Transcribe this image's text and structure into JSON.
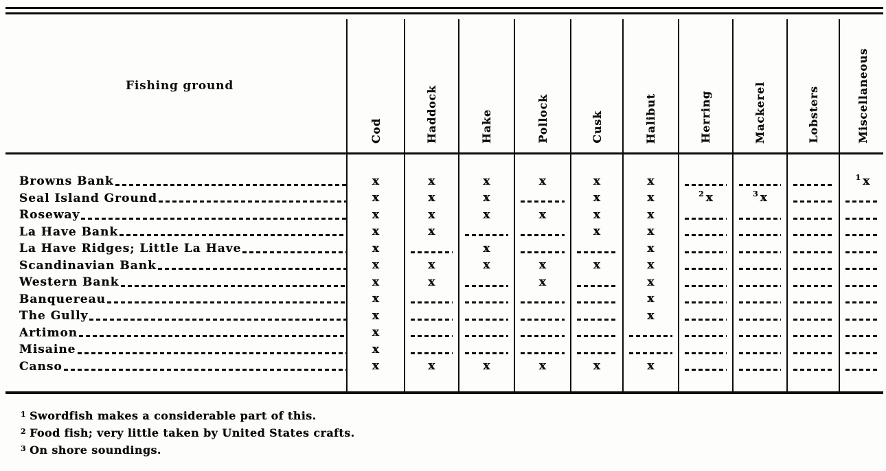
{
  "table": {
    "title": "Fishing ground",
    "columns": [
      "Cod",
      "Haddock",
      "Hake",
      "Pollock",
      "Cusk",
      "Halibut",
      "Herring",
      "Mackerel",
      "Lobsters",
      "Miscellaneous"
    ],
    "mark_glyph": "x",
    "rows": [
      {
        "label": "Browns Bank",
        "cells": [
          "x",
          "x",
          "x",
          "x",
          "x",
          "x",
          "-",
          "-",
          "-",
          "1x"
        ]
      },
      {
        "label": "Seal Island Ground",
        "cells": [
          "x",
          "x",
          "x",
          "-",
          "x",
          "x",
          "2x",
          "3x",
          "-",
          "-"
        ]
      },
      {
        "label": "Roseway",
        "cells": [
          "x",
          "x",
          "x",
          "x",
          "x",
          "x",
          "-",
          "-",
          "-",
          "-"
        ]
      },
      {
        "label": "La Have Bank",
        "cells": [
          "x",
          "x",
          "-",
          "-",
          "x",
          "x",
          "-",
          "-",
          "-",
          "-"
        ]
      },
      {
        "label": "La Have Ridges; Little La Have",
        "cells": [
          "x",
          "-",
          "x",
          "-",
          "-",
          "x",
          "-",
          "-",
          "-",
          "-"
        ]
      },
      {
        "label": "Scandinavian Bank",
        "cells": [
          "x",
          "x",
          "x",
          "x",
          "x",
          "x",
          "-",
          "-",
          "-",
          "-"
        ]
      },
      {
        "label": "Western Bank",
        "cells": [
          "x",
          "x",
          "-",
          "x",
          "-",
          "x",
          "-",
          "-",
          "-",
          "-"
        ]
      },
      {
        "label": "Banquereau",
        "cells": [
          "x",
          "-",
          "-",
          "-",
          "-",
          "x",
          "-",
          "-",
          "-",
          "-"
        ]
      },
      {
        "label": "The Gully",
        "cells": [
          "x",
          "-",
          "-",
          "-",
          "-",
          "x",
          "-",
          "-",
          "-",
          "-"
        ]
      },
      {
        "label": "Artimon",
        "cells": [
          "x",
          "-",
          "-",
          "-",
          "-",
          "-",
          "-",
          "-",
          "-",
          "-"
        ]
      },
      {
        "label": "Misaine",
        "cells": [
          "x",
          "-",
          "-",
          "-",
          "-",
          "-",
          "-",
          "-",
          "-",
          "-"
        ]
      },
      {
        "label": "Canso",
        "cells": [
          "x",
          "x",
          "x",
          "x",
          "x",
          "x",
          "-",
          "-",
          "-",
          "-"
        ]
      }
    ]
  },
  "footnotes": [
    {
      "marker": "1",
      "text": "Swordfish makes a considerable part of this."
    },
    {
      "marker": "2",
      "text": "Food fish; very little taken by United States crafts."
    },
    {
      "marker": "3",
      "text": "On shore soundings."
    }
  ],
  "colors": {
    "ink": "#0d0c0a",
    "paper": "#fdfdfb"
  }
}
